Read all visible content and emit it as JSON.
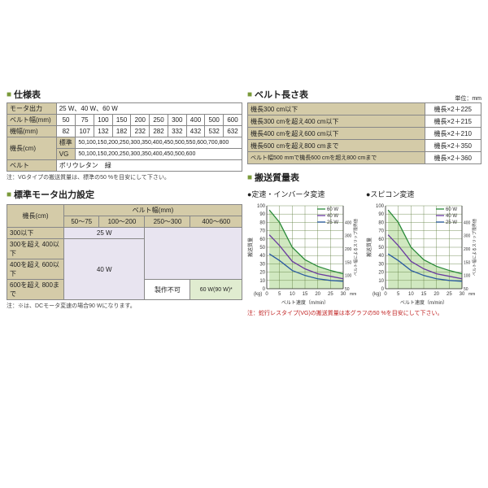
{
  "spec": {
    "title": "仕様表",
    "rows": [
      {
        "label": "モータ出力",
        "value": "25 W、40 W、60 W"
      },
      {
        "label": "ベルト幅(mm)",
        "cells": [
          "50",
          "75",
          "100",
          "150",
          "200",
          "250",
          "300",
          "400",
          "500",
          "600"
        ]
      },
      {
        "label": "機幅(mm)",
        "cells": [
          "82",
          "107",
          "132",
          "182",
          "232",
          "282",
          "332",
          "432",
          "532",
          "632"
        ]
      },
      {
        "label": "機長(cm)",
        "sub1": "標準",
        "sub1val": "50,100,150,200,250,300,350,400,450,500,550,600,700,800",
        "sub2": "VG",
        "sub2val": "50,100,150,200,250,300,350,400,450,500,600"
      },
      {
        "label": "ベルト",
        "value": "ポリウレタン　緑"
      }
    ],
    "note": "注：VGタイプの搬送質量は、標準の50 %を目安にして下さい。"
  },
  "motor": {
    "title": "標準モータ出力設定",
    "col_hdr": "ベルト幅(mm)",
    "row_hdr": "機長(cm)",
    "cols": [
      "50～75",
      "100～200",
      "250～300",
      "400～600"
    ],
    "rows": [
      "300以下",
      "300を超え 400以下",
      "400を超え 600以下",
      "600を超え 800まで"
    ],
    "w25": "25 W",
    "w40": "40 W",
    "w60": "60 W(90 W)*",
    "na": "製作不可",
    "note": "注：※は、DCモータ変速の場合90 Wになります。"
  },
  "length": {
    "title": "ベルト長さ表",
    "unit": "単位：mm",
    "rows": [
      {
        "cond": "機長300 cm以下",
        "val": "機長×2＋225"
      },
      {
        "cond": "機長300 cmを超え400 cm以下",
        "val": "機長×2＋215"
      },
      {
        "cond": "機長400 cmを超え600 cm以下",
        "val": "機長×2＋210"
      },
      {
        "cond": "機長600 cmを超え800 cmまで",
        "val": "機長×2＋350"
      },
      {
        "cond": "ベルト幅500 mmで機長600 cmを超え800 cmまで",
        "val": "機長×2＋360"
      }
    ]
  },
  "conveying": {
    "title": "搬送質量表",
    "chart1_title": "●定速・インバータ変速",
    "chart2_title": "●スピコン変速",
    "note": "注：蛇行レスタイプ(VG)の搬送質量は本グラフの50 %を目安にして下さい。",
    "xlabel": "ベルト速度（m/min）",
    "ylabel": "搬送質量",
    "yunit": "(kg)",
    "y2label": "ベルト幅によるスリップ限界値",
    "y2unit": "mm",
    "legend": [
      {
        "label": "60 W",
        "color": "#2a8a3a"
      },
      {
        "label": "40 W",
        "color": "#6a3aa0"
      },
      {
        "label": "25 W",
        "color": "#2a5aa0"
      }
    ],
    "xticks": [
      0,
      5,
      10,
      15,
      20,
      25,
      30
    ],
    "yticks": [
      0,
      10,
      20,
      30,
      40,
      50,
      60,
      70,
      80,
      90,
      100
    ],
    "y2ticks": [
      50,
      100,
      150,
      200,
      300,
      400
    ],
    "series": {
      "w60": [
        {
          "x": 1,
          "y": 95
        },
        {
          "x": 5,
          "y": 80
        },
        {
          "x": 10,
          "y": 50
        },
        {
          "x": 15,
          "y": 35
        },
        {
          "x": 20,
          "y": 27
        },
        {
          "x": 25,
          "y": 22
        },
        {
          "x": 30,
          "y": 18
        }
      ],
      "w40": [
        {
          "x": 1,
          "y": 65
        },
        {
          "x": 5,
          "y": 52
        },
        {
          "x": 10,
          "y": 33
        },
        {
          "x": 15,
          "y": 24
        },
        {
          "x": 20,
          "y": 18
        },
        {
          "x": 25,
          "y": 15
        },
        {
          "x": 30,
          "y": 12
        }
      ],
      "w25": [
        {
          "x": 1,
          "y": 42
        },
        {
          "x": 5,
          "y": 34
        },
        {
          "x": 10,
          "y": 22
        },
        {
          "x": 15,
          "y": 16
        },
        {
          "x": 20,
          "y": 12
        },
        {
          "x": 25,
          "y": 10
        },
        {
          "x": 30,
          "y": 9
        }
      ]
    },
    "fill_color": "#d0e8c0",
    "grid_color": "#5a7a3a",
    "colors": {
      "w60": "#2a8a3a",
      "w40": "#6a3aa0",
      "w25": "#2a5aa0"
    }
  }
}
